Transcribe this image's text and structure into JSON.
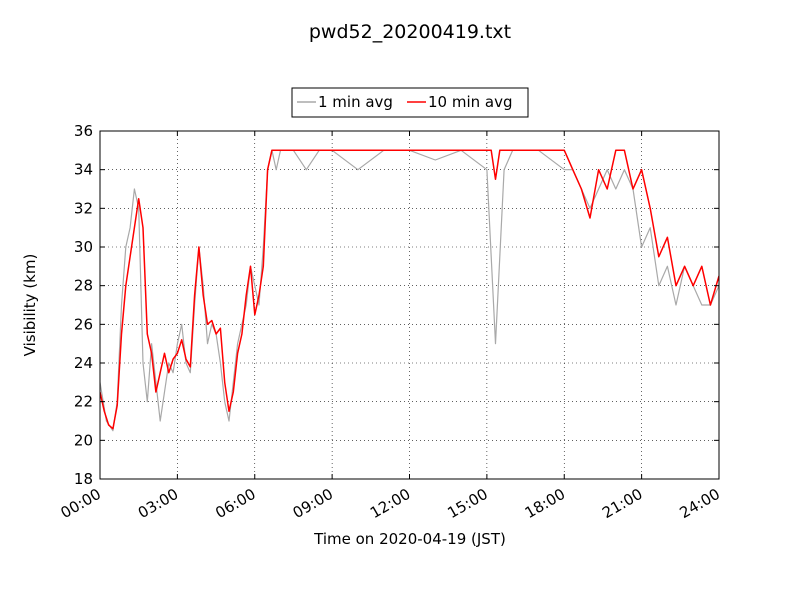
{
  "chart_data": {
    "type": "line",
    "title": "pwd52_20200419.txt",
    "xlabel": "Time on 2020-04-19 (JST)",
    "ylabel": "Visibility (km)",
    "xlim": [
      "00:00",
      "24:00"
    ],
    "ylim": [
      18,
      36
    ],
    "x_ticks": [
      "00:00",
      "03:00",
      "06:00",
      "09:00",
      "12:00",
      "15:00",
      "18:00",
      "21:00",
      "24:00"
    ],
    "y_ticks": [
      18,
      20,
      22,
      24,
      26,
      28,
      30,
      32,
      34,
      36
    ],
    "grid": true,
    "legend_position": "top-center",
    "colors": {
      "one_min": "#a9a9a9",
      "ten_min": "#ff0000"
    },
    "series": [
      {
        "name": "1 min avg",
        "color": "#a9a9a9",
        "x": [
          "00:00",
          "00:15",
          "00:30",
          "00:40",
          "00:50",
          "01:00",
          "01:10",
          "01:20",
          "01:30",
          "01:40",
          "01:50",
          "02:00",
          "02:10",
          "02:20",
          "02:30",
          "02:40",
          "02:50",
          "03:00",
          "03:10",
          "03:20",
          "03:30",
          "03:40",
          "03:50",
          "04:00",
          "04:10",
          "04:20",
          "04:30",
          "04:40",
          "04:50",
          "05:00",
          "05:10",
          "05:20",
          "05:30",
          "05:40",
          "05:50",
          "06:00",
          "06:10",
          "06:20",
          "06:30",
          "06:40",
          "06:50",
          "07:00",
          "07:30",
          "08:00",
          "08:30",
          "09:00",
          "10:00",
          "11:00",
          "12:00",
          "13:00",
          "14:00",
          "15:00",
          "15:20",
          "15:40",
          "16:00",
          "17:00",
          "18:00",
          "18:20",
          "18:40",
          "19:00",
          "19:20",
          "19:40",
          "20:00",
          "20:20",
          "20:40",
          "21:00",
          "21:20",
          "21:40",
          "22:00",
          "22:20",
          "22:40",
          "23:00",
          "23:20",
          "23:40",
          "24:00"
        ],
        "y": [
          23,
          21,
          20.5,
          22,
          27,
          30,
          31,
          33,
          32,
          24,
          22,
          25,
          23,
          21,
          22.5,
          24,
          23.5,
          25,
          26,
          24,
          23.5,
          27,
          30,
          28,
          25,
          26,
          25.5,
          24,
          22,
          21,
          23,
          25,
          26,
          27,
          29,
          28,
          27,
          30,
          34,
          35,
          34,
          35,
          35,
          34,
          35,
          35,
          34,
          35,
          35,
          34.5,
          35,
          34,
          25,
          34,
          35,
          35,
          34,
          34,
          33,
          32,
          33,
          34,
          33,
          34,
          33,
          30,
          31,
          28,
          29,
          27,
          29,
          28,
          27,
          27,
          28
        ]
      },
      {
        "name": "10 min avg",
        "color": "#ff0000",
        "x": [
          "00:00",
          "00:10",
          "00:20",
          "00:30",
          "00:40",
          "00:50",
          "01:00",
          "01:10",
          "01:20",
          "01:30",
          "01:40",
          "01:50",
          "02:00",
          "02:10",
          "02:20",
          "02:30",
          "02:40",
          "02:50",
          "03:00",
          "03:10",
          "03:20",
          "03:30",
          "03:40",
          "03:50",
          "04:00",
          "04:10",
          "04:20",
          "04:30",
          "04:40",
          "04:50",
          "05:00",
          "05:10",
          "05:20",
          "05:30",
          "05:40",
          "05:50",
          "06:00",
          "06:10",
          "06:20",
          "06:30",
          "06:40",
          "06:50",
          "07:00",
          "08:00",
          "10:00",
          "12:00",
          "14:00",
          "15:00",
          "15:10",
          "15:20",
          "15:30",
          "16:00",
          "17:00",
          "17:40",
          "18:00",
          "18:20",
          "18:40",
          "19:00",
          "19:20",
          "19:40",
          "20:00",
          "20:20",
          "20:40",
          "21:00",
          "21:20",
          "21:40",
          "22:00",
          "22:20",
          "22:40",
          "23:00",
          "23:20",
          "23:40",
          "24:00"
        ],
        "y": [
          22.5,
          21.5,
          20.8,
          20.6,
          21.8,
          25.5,
          28,
          29.5,
          31,
          32.5,
          31,
          25.5,
          24.5,
          22.5,
          23.5,
          24.5,
          23.5,
          24.2,
          24.5,
          25.2,
          24.2,
          23.8,
          27.5,
          30,
          27.5,
          26,
          26.2,
          25.5,
          25.8,
          23,
          21.5,
          22.5,
          24.5,
          25.5,
          27.5,
          29,
          26.5,
          27.5,
          29,
          34,
          35,
          35,
          35,
          35,
          35,
          35,
          35,
          35,
          35,
          33.5,
          35,
          35,
          35,
          35,
          35,
          34,
          33,
          31.5,
          34,
          33,
          35,
          35,
          33,
          34,
          32,
          29.5,
          30.5,
          28,
          29,
          28,
          29,
          27,
          28.5
        ]
      }
    ]
  }
}
